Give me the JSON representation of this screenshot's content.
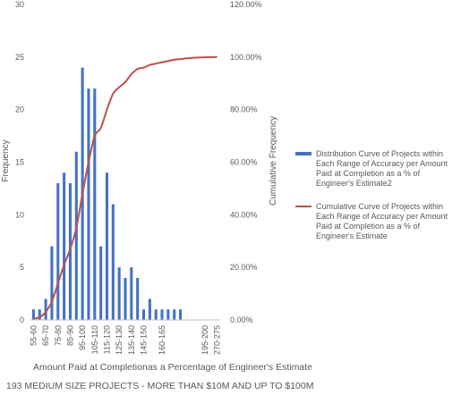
{
  "chart_data": {
    "type": "bar",
    "categories": [
      "55-60",
      "60-65",
      "65-70",
      "70-75",
      "75-80",
      "80-85",
      "85-90",
      "90-95",
      "95-100",
      "100-105",
      "105-110",
      "110-115",
      "115-120",
      "120-125",
      "125-130",
      "130-135",
      "135-140",
      "140-145",
      "145-150",
      "150-155",
      "155-160",
      "160-165",
      "165-170",
      "170-175",
      "175-180",
      "180-185",
      "185-190",
      "190-195",
      "195-200",
      "200-270",
      "270-275"
    ],
    "x_tick_labels": [
      "55-60",
      "65-70",
      "75-80",
      "85-90",
      "95-100",
      "105-110",
      "115-120",
      "125-130",
      "135-140",
      "145-150",
      "160-165",
      "195-200",
      "270-275"
    ],
    "series": [
      {
        "name": "Distribution Curve of Projects within Each Range of Accuracy per Amount Paid at Completion as  a % of Engineer's Estimate2",
        "type": "bar",
        "axis": "left",
        "color": "#4472C4",
        "values": [
          1,
          1,
          2,
          7,
          13,
          14,
          13,
          16,
          24,
          22,
          22,
          7,
          14,
          11,
          5,
          4,
          5,
          4,
          1,
          2,
          1,
          1,
          1,
          1,
          1,
          0,
          0,
          0,
          0,
          0,
          0
        ]
      },
      {
        "name": "Cumulative Curve of Projects within Each Range of Accuracy per Amount Paid at Completion as  a % of Engineer's Estimate",
        "type": "line",
        "axis": "right",
        "color": "#C0504D",
        "values": [
          0.5,
          1.0,
          3.0,
          7.0,
          14.0,
          21.0,
          27.0,
          35.0,
          48.0,
          60.0,
          70.0,
          73.0,
          80.0,
          86.0,
          88.5,
          90.5,
          93.5,
          95.5,
          96.0,
          97.0,
          97.5,
          98.0,
          98.5,
          99.0,
          99.2,
          99.5,
          99.7,
          99.8,
          99.9,
          100.0,
          100.0
        ]
      }
    ],
    "ylim_left": [
      0,
      30
    ],
    "yticks_left": [
      "0",
      "5",
      "10",
      "15",
      "20",
      "25",
      "30"
    ],
    "ylim_right": [
      0,
      120
    ],
    "yticks_right": [
      "0.00%",
      "20.00%",
      "40.00%",
      "60.00%",
      "80.00%",
      "100.00%",
      "120.00%"
    ],
    "ylabel_left": "Frequency",
    "ylabel_right": "Cumulative Frequency",
    "xlabel": "Amount Paid at Completionas a Percentage of Engineer's Estimate",
    "subtitle": "193 MEDIUM SIZE PROJECTS - MORE THAN $10M AND UP TO $100M",
    "grid": false,
    "legend_position": "right"
  }
}
